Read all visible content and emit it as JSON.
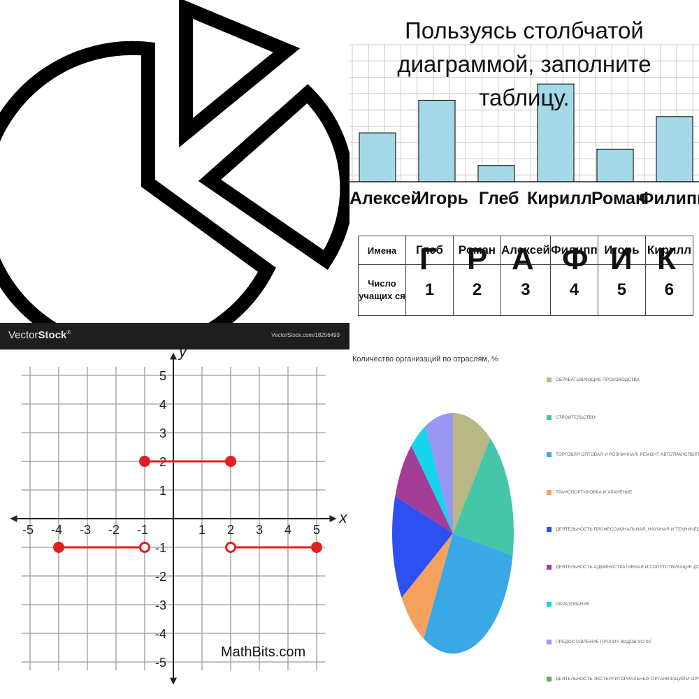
{
  "q1": {
    "icon_name": "pie-chart-icon",
    "watermark_brand_prefix": "Vector",
    "watermark_brand_suffix": "Stock",
    "watermark_reg": "®",
    "watermark_url": "VectorStock.com/18256493"
  },
  "q2": {
    "title_line1": "Пользуясь столбчатой",
    "title_line2": "диаграммой, заполните таблицу.",
    "bar_color": "#a4d9e8",
    "chart_data": {
      "type": "bar",
      "categories": [
        "Алексей",
        "Игорь",
        "Глеб",
        "Кирилл",
        "Роман",
        "Филипп"
      ],
      "values": [
        3,
        5,
        1,
        6,
        2,
        4
      ]
    },
    "table": {
      "row1_header": "Имена",
      "row2_header": "Число учащих ся",
      "names": [
        "Глеб",
        "Роман",
        "Алексей",
        "Филипп",
        "Игорь",
        "Кирилл"
      ],
      "numbers": [
        "1",
        "2",
        "3",
        "4",
        "5",
        "6"
      ]
    },
    "overlay_letters": [
      "Г",
      "Р",
      "А",
      "Ф",
      "И",
      "К"
    ]
  },
  "q3": {
    "chart_data": {
      "type": "line",
      "xlabel": "x",
      "ylabel": "y",
      "xlim": [
        -5,
        5
      ],
      "ylim": [
        -5,
        5
      ],
      "x_ticks": [
        "-5",
        "-4",
        "-3",
        "-2",
        "-1",
        "1",
        "2",
        "3",
        "4",
        "5"
      ],
      "y_ticks": [
        "5",
        "4",
        "3",
        "2",
        "1",
        "-1",
        "-2",
        "-3",
        "-4",
        "-5"
      ],
      "segments": [
        {
          "x": [
            -4,
            -1
          ],
          "y": [
            -1,
            -1
          ],
          "closed": [
            true,
            false
          ]
        },
        {
          "x": [
            -1,
            2
          ],
          "y": [
            2,
            2
          ],
          "closed": [
            true,
            true
          ]
        },
        {
          "x": [
            2,
            5
          ],
          "y": [
            -1,
            -1
          ],
          "closed": [
            false,
            true
          ]
        }
      ],
      "line_color": "#e02020",
      "grid": true
    },
    "watermark": "MathBits.com"
  },
  "q4": {
    "title": "Количество организаций по отраслям, %",
    "chart_data": {
      "type": "pie",
      "labels": [
        "ОБРАБАТЫВАЮЩИЕ ПРОИЗВОДСТВА",
        "СТРОИТЕЛЬСТВО",
        "ТОРГОВЛЯ ОПТОВАЯ И РОЗНИЧНАЯ; РЕМОНТ АВТОТРАНСПОРТНЫХ СРЕДСТВ И МОТОЦИКЛОВ",
        "ТРАНСПОРТИРОВКА И ХРАНЕНИЕ",
        "ДЕЯТЕЛЬНОСТЬ ПРОФЕССИОНАЛЬНАЯ, НАУЧНАЯ И ТЕХНИЧЕСКАЯ",
        "ДЕЯТЕЛЬНОСТЬ АДМИНИСТРАТИВНАЯ И СОПУТСТВУЮЩИЕ ДОПОЛНИТЕЛЬНЫЕ УСЛУГИ",
        "ОБРАЗОВАНИЕ",
        "ПРЕДОСТАВЛЕНИЕ ПРОЧИХ ВИДОВ УСЛУГ",
        "ДЕЯТЕЛЬНОСТЬ ЭКСТЕРРИТОРИАЛЬНЫХ ОРГАНИЗАЦИЙ И ОРГАНОВ"
      ],
      "values": [
        10.5,
        17.5,
        30,
        8,
        14,
        8,
        4.5,
        7.5,
        0
      ],
      "colors": [
        "#b8b884",
        "#45c6a8",
        "#3aa8e6",
        "#f4a15d",
        "#2e4ff2",
        "#a33d96",
        "#14d4ee",
        "#9a95f2",
        "#6aa85a"
      ]
    }
  }
}
